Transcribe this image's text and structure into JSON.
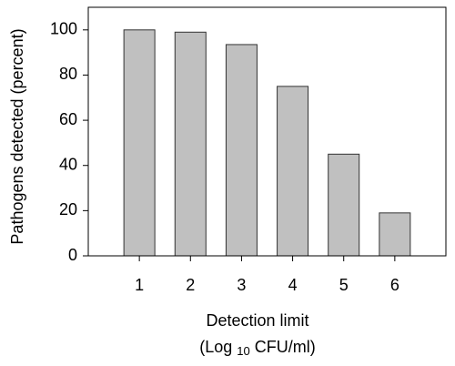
{
  "chart_data": {
    "type": "bar",
    "ylabel": "Pathogens detected (percent)",
    "xlabel": {
      "line1": "Detection limit",
      "line2": [
        "(Log",
        "10",
        "CFU/ml)"
      ]
    },
    "categories": [
      "1",
      "2",
      "3",
      "4",
      "5",
      "6"
    ],
    "values": [
      100,
      99,
      93.5,
      75,
      45,
      19
    ],
    "color": "#c0c0c0",
    "ylim": [
      0,
      110
    ],
    "yticks": [
      0,
      20,
      40,
      60,
      80,
      100
    ]
  }
}
